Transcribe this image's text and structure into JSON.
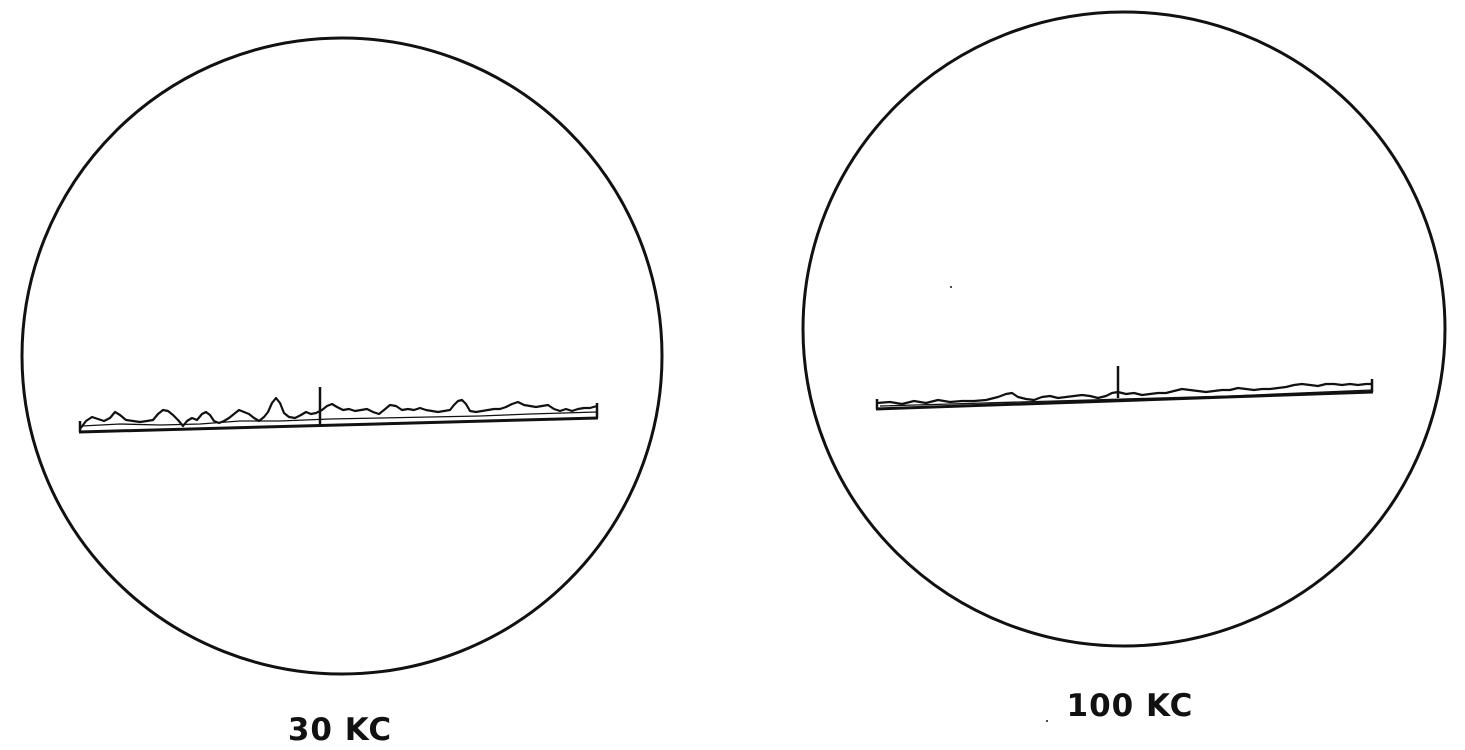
{
  "colors": {
    "ink": "#111111",
    "background": "#ffffff"
  },
  "scopes": [
    {
      "id": "scope-30kc",
      "caption": "30 KC"
    },
    {
      "id": "scope-100kc",
      "caption": "100 KC"
    }
  ]
}
